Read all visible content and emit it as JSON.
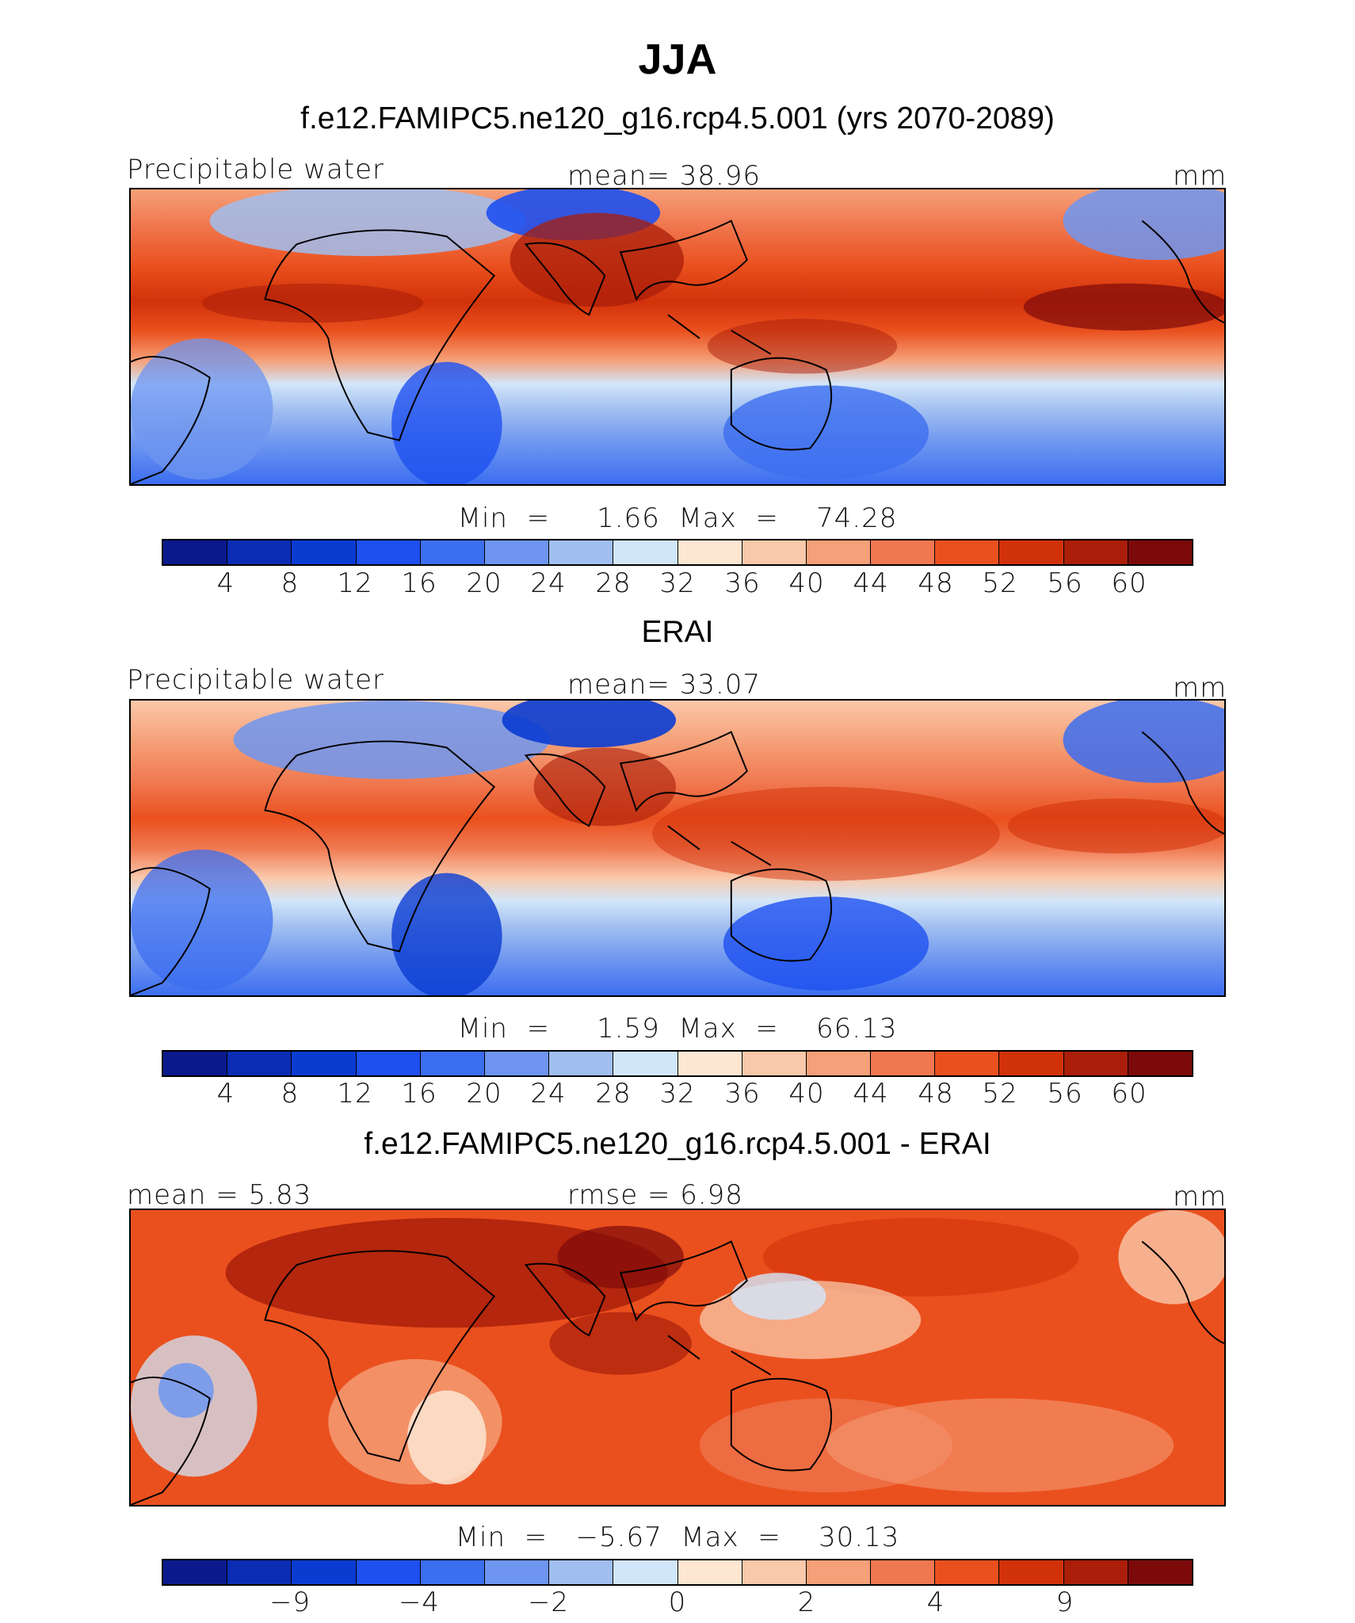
{
  "title": "JJA",
  "colors": {
    "levels": [
      "#0a1a8c",
      "#0a2db4",
      "#0a3cd2",
      "#1e50f0",
      "#3c6ef0",
      "#6e96f0",
      "#a0bef0",
      "#d2e6fa",
      "#fde6d2",
      "#fac8aa",
      "#f5a078",
      "#f07850",
      "#ea501e",
      "#d2320a",
      "#aa1e0a",
      "#7d0a0a"
    ],
    "land_outline": "#000000"
  },
  "panels": [
    {
      "subtitle": "f.e12.FAMIPC5.ne120_g16.rcp4.5.001 (yrs 2070-2089)",
      "left_label": "Precipitable water",
      "center_label": "mean=   38.96",
      "units": "mm",
      "minmax": "Min  =     1.66  Max  =    74.28",
      "ticks": [
        "4",
        "8",
        "12",
        "16",
        "20",
        "24",
        "28",
        "32",
        "36",
        "40",
        "44",
        "48",
        "52",
        "56",
        "60"
      ]
    },
    {
      "subtitle": "ERAI",
      "left_label": "Precipitable water",
      "center_label": "mean=   33.07",
      "units": "mm",
      "minmax": "Min  =     1.59  Max  =    66.13",
      "ticks": [
        "4",
        "8",
        "12",
        "16",
        "20",
        "24",
        "28",
        "32",
        "36",
        "40",
        "44",
        "48",
        "52",
        "56",
        "60"
      ]
    },
    {
      "subtitle": "f.e12.FAMIPC5.ne120_g16.rcp4.5.001 - ERAI",
      "left_label": "mean =    5.83",
      "center_label": "rmse =    6.98",
      "units": "mm",
      "minmax": "Min  =   −5.67  Max  =    30.13",
      "ticks": [
        "−9",
        "",
        "−4",
        "",
        "−2",
        "",
        "0",
        "",
        "2",
        "",
        "4",
        "",
        "9",
        "",
        ""
      ]
    }
  ]
}
